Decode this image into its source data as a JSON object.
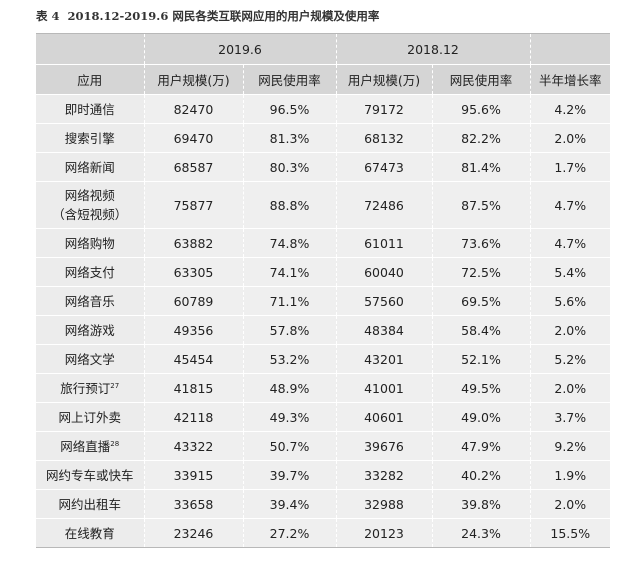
{
  "caption": {
    "label": "表 4",
    "title": "2018.12-2019.6 网民各类互联网应用的用户规模及使用率"
  },
  "header": {
    "period_a": "2019.6",
    "period_b": "2018.12",
    "col_app": "应用",
    "col_users_a": "用户规模(万)",
    "col_rate_a": "网民使用率",
    "col_users_b": "用户规模(万)",
    "col_rate_b": "网民使用率",
    "col_growth": "半年增长率"
  },
  "rows": [
    {
      "app": "即时通信",
      "users_a": "82470",
      "rate_a": "96.5%",
      "users_b": "79172",
      "rate_b": "95.6%",
      "growth": "4.2%"
    },
    {
      "app": "搜索引擎",
      "users_a": "69470",
      "rate_a": "81.3%",
      "users_b": "68132",
      "rate_b": "82.2%",
      "growth": "2.0%"
    },
    {
      "app": "网络新闻",
      "users_a": "68587",
      "rate_a": "80.3%",
      "users_b": "67473",
      "rate_b": "81.4%",
      "growth": "1.7%"
    },
    {
      "app": "网络视频",
      "app_line2": "（含短视频）",
      "users_a": "75877",
      "rate_a": "88.8%",
      "users_b": "72486",
      "rate_b": "87.5%",
      "growth": "4.7%"
    },
    {
      "app": "网络购物",
      "users_a": "63882",
      "rate_a": "74.8%",
      "users_b": "61011",
      "rate_b": "73.6%",
      "growth": "4.7%"
    },
    {
      "app": "网络支付",
      "users_a": "63305",
      "rate_a": "74.1%",
      "users_b": "60040",
      "rate_b": "72.5%",
      "growth": "5.4%"
    },
    {
      "app": "网络音乐",
      "users_a": "60789",
      "rate_a": "71.1%",
      "users_b": "57560",
      "rate_b": "69.5%",
      "growth": "5.6%"
    },
    {
      "app": "网络游戏",
      "users_a": "49356",
      "rate_a": "57.8%",
      "users_b": "48384",
      "rate_b": "58.4%",
      "growth": "2.0%"
    },
    {
      "app": "网络文学",
      "users_a": "45454",
      "rate_a": "53.2%",
      "users_b": "43201",
      "rate_b": "52.1%",
      "growth": "5.2%"
    },
    {
      "app": "旅行预订",
      "note": "27",
      "users_a": "41815",
      "rate_a": "48.9%",
      "users_b": "41001",
      "rate_b": "49.5%",
      "growth": "2.0%"
    },
    {
      "app": "网上订外卖",
      "users_a": "42118",
      "rate_a": "49.3%",
      "users_b": "40601",
      "rate_b": "49.0%",
      "growth": "3.7%"
    },
    {
      "app": "网络直播",
      "note": "28",
      "users_a": "43322",
      "rate_a": "50.7%",
      "users_b": "39676",
      "rate_b": "47.9%",
      "growth": "9.2%"
    },
    {
      "app": "网约专车或快车",
      "users_a": "33915",
      "rate_a": "39.7%",
      "users_b": "33282",
      "rate_b": "40.2%",
      "growth": "1.9%"
    },
    {
      "app": "网约出租车",
      "users_a": "33658",
      "rate_a": "39.4%",
      "users_b": "32988",
      "rate_b": "39.8%",
      "growth": "2.0%"
    },
    {
      "app": "在线教育",
      "users_a": "23246",
      "rate_a": "27.2%",
      "users_b": "20123",
      "rate_b": "24.3%",
      "growth": "15.5%"
    }
  ]
}
